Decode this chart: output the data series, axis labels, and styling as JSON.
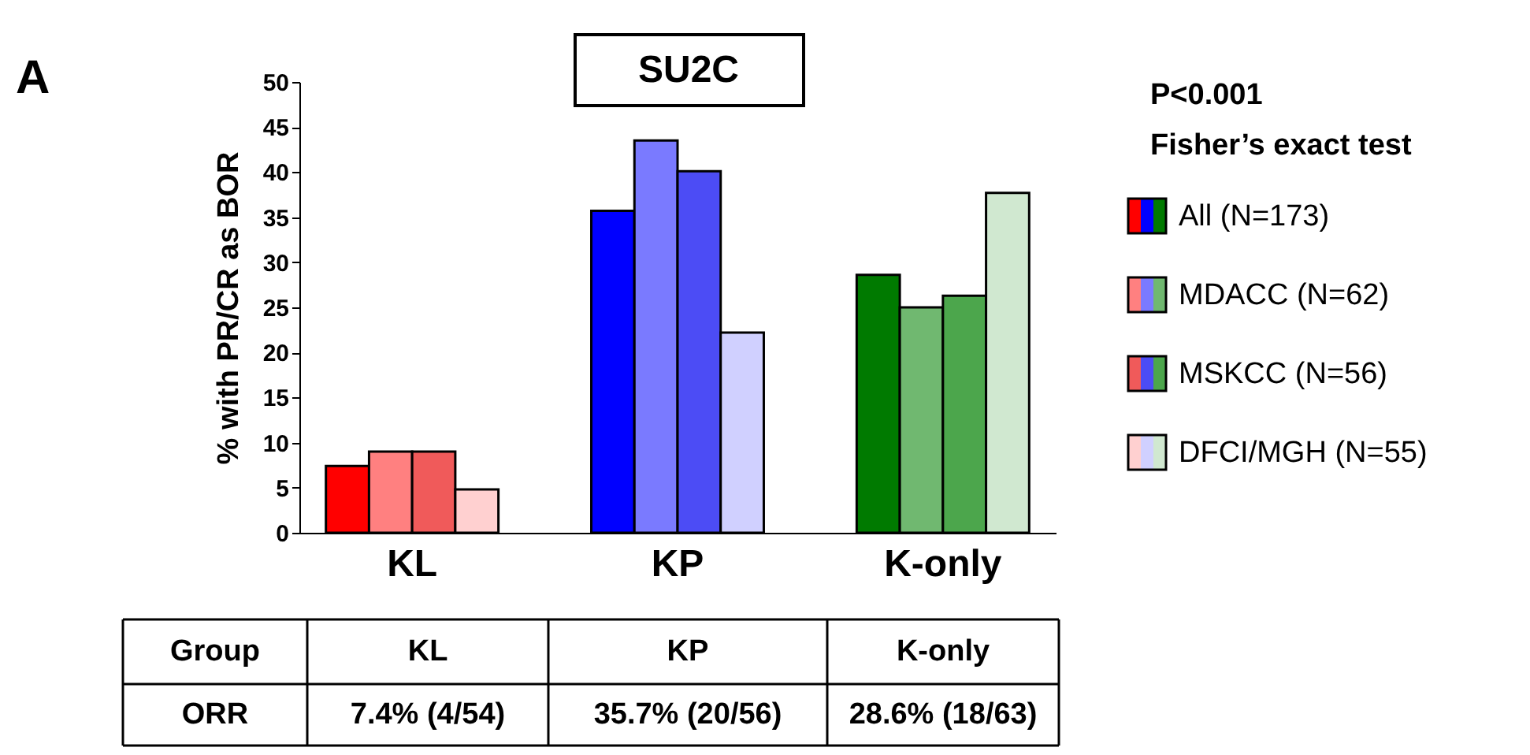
{
  "chart_data": {
    "type": "bar",
    "title": "SU2C",
    "ylabel": "% with PR/CR as BOR",
    "categories": [
      "KL",
      "KP",
      "K-only"
    ],
    "series": [
      {
        "name": "All (N=173)",
        "colors": [
          "#ff0000",
          "#0000ff",
          "#007a00"
        ],
        "values": [
          7.4,
          35.7,
          28.6
        ],
        "value_labels": [
          "7.4% (4/54)",
          "35.7% (20/56)",
          "28.6% (18/63)"
        ]
      },
      {
        "name": "MDACC (N=62)",
        "colors": [
          "#ff8080",
          "#7a7aff",
          "#70b870"
        ],
        "values": [
          9.0,
          43.5,
          25.0
        ]
      },
      {
        "name": "MSKCC (N=56)",
        "colors": [
          "#f05a5a",
          "#4c4cf5",
          "#4ca64c"
        ],
        "values": [
          9.0,
          40.1,
          26.3
        ]
      },
      {
        "name": "DFCI/MGH (N=55)",
        "colors": [
          "#ffd0d0",
          "#d0d0ff",
          "#d0e8d0"
        ],
        "values": [
          4.8,
          22.2,
          37.7
        ]
      }
    ],
    "ylim": [
      0,
      50
    ],
    "yticks": [
      0,
      5,
      10,
      15,
      20,
      25,
      30,
      35,
      40,
      45,
      50
    ],
    "grid": false,
    "legend": "right",
    "annotations": [
      "A",
      "P<0.001",
      "Fisher’s exact test",
      "Group",
      "ORR"
    ]
  }
}
